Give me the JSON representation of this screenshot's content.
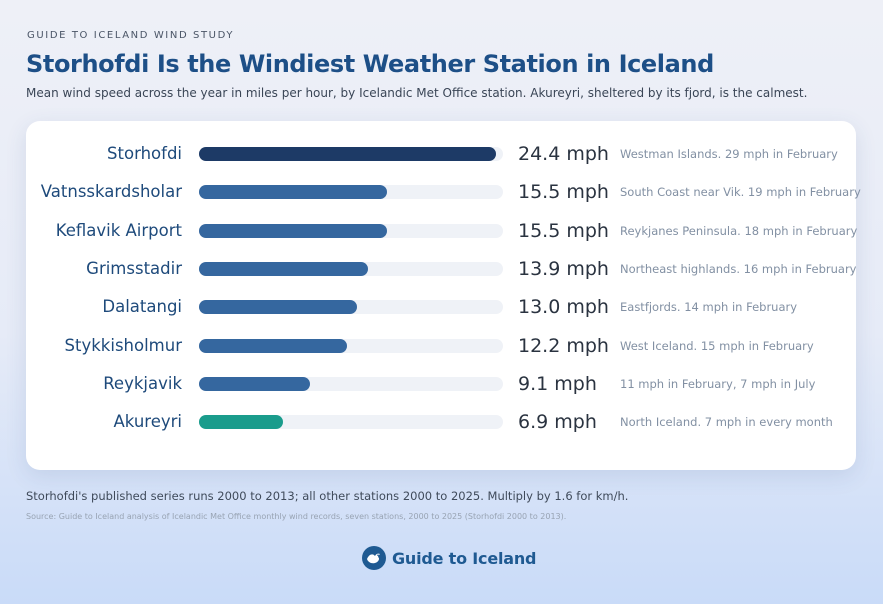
{
  "kicker": "GUIDE TO ICELAND WIND STUDY",
  "title": "Storhofdi Is the Windiest Weather Station in Iceland",
  "subtitle": "Mean wind speed across the year in miles per hour, by Icelandic Met Office station. Akureyri, sheltered by its fjord, is the calmest.",
  "chart_data": {
    "type": "bar",
    "orientation": "horizontal",
    "categories": [
      "Storhofdi",
      "Vatnsskardsholar",
      "Keflavik Airport",
      "Grimsstadir",
      "Dalatangi",
      "Stykkisholmur",
      "Reykjavik",
      "Akureyri"
    ],
    "values": [
      24.4,
      15.5,
      15.5,
      13.9,
      13.0,
      12.2,
      9.1,
      6.9
    ],
    "value_labels": [
      "24.4 mph",
      "15.5 mph",
      "15.5 mph",
      "13.9 mph",
      "13.0 mph",
      "12.2 mph",
      "9.1 mph",
      "6.9 mph"
    ],
    "notes": [
      "Westman Islands. 29 mph in February",
      "South Coast near Vik. 19 mph in February",
      "Reykjanes Peninsula. 18 mph in February",
      "Northeast highlands. 16 mph in February",
      "Eastfjords. 14 mph in February",
      "West Iceland. 15 mph in February",
      "11 mph in February, 7 mph in July",
      "North Iceland. 7 mph in every month"
    ],
    "xlim": [
      0,
      25
    ],
    "grid": false,
    "colors": {
      "top": "#1d3a66",
      "default": "#35679f",
      "lowest": "#1a9c8c",
      "track": "#eff2f7"
    }
  },
  "footnote": "Storhofdi's published series runs 2000 to 2013; all other stations 2000 to 2025. Multiply by 1.6 for km/h.",
  "source": "Source: Guide to Iceland analysis of Icelandic Met Office monthly wind records, seven stations, 2000 to 2025 (Storhofdi 2000 to 2013).",
  "brand": {
    "name": "Guide to Iceland",
    "icon": "bird-logo-icon"
  }
}
